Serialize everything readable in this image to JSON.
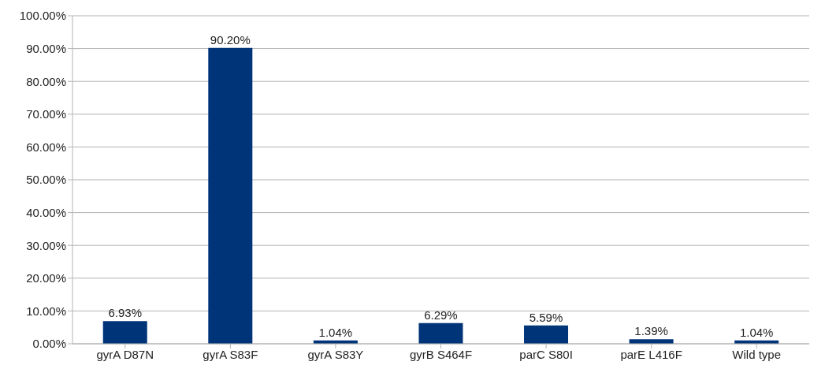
{
  "chart_data": {
    "type": "bar",
    "categories": [
      "gyrA D87N",
      "gyrA S83F",
      "gyrA S83Y",
      "gyrB S464F",
      "parC S80I",
      "parE L416F",
      "Wild type"
    ],
    "values": [
      6.93,
      90.2,
      1.04,
      6.29,
      5.59,
      1.39,
      1.04
    ],
    "value_labels": [
      "6.93%",
      "90.20%",
      "1.04%",
      "6.29%",
      "5.59%",
      "1.39%",
      "1.04%"
    ],
    "color": "#003479",
    "ylim": [
      0,
      100
    ],
    "yticks": [
      {
        "value": 0,
        "label": "0.00%"
      },
      {
        "value": 10,
        "label": "10.00%"
      },
      {
        "value": 20,
        "label": "20.00%"
      },
      {
        "value": 30,
        "label": "30.00%"
      },
      {
        "value": 40,
        "label": "40.00%"
      },
      {
        "value": 50,
        "label": "50.00%"
      },
      {
        "value": 60,
        "label": "60.00%"
      },
      {
        "value": 70,
        "label": "70.00%"
      },
      {
        "value": 80,
        "label": "80.00%"
      },
      {
        "value": 90,
        "label": "90.00%"
      },
      {
        "value": 100,
        "label": "100.00%"
      }
    ],
    "grid": "y",
    "legend": false
  }
}
